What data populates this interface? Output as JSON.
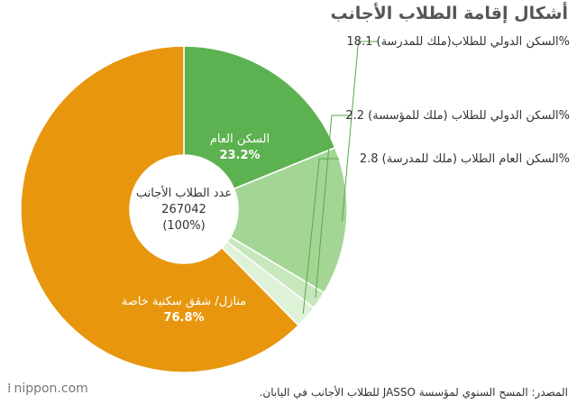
{
  "title": "أشكال إقامة الطلاب الأجانب",
  "source": "المصدر: المسح السنوي لمؤسسة JASSO للطلاب الأجانب في اليابان.",
  "logo": "nippon.com",
  "chart_data": {
    "type": "pie",
    "donut": true,
    "center_label": [
      "عدد الطلاب الأجانب",
      "267042",
      "(100%)"
    ],
    "slices": [
      {
        "label": "السكن العام",
        "value": 23.2,
        "color": "#5cb150",
        "label_inside": true
      },
      {
        "label": "السكن الدولي للطلاب(ملك للمدرسة)",
        "value": 18.1,
        "color": "#a3d695",
        "label_inside": false
      },
      {
        "label": "السكن الدولي للطلاب (ملك للمؤسسة)",
        "value": 2.2,
        "color": "#c6e8bc",
        "label_inside": false
      },
      {
        "label": "السكن العام الطلاب (ملك للمدرسة)",
        "value": 2.8,
        "color": "#def2d8",
        "label_inside": false
      },
      {
        "label": "منازل/ شقق سكنية خاصة",
        "value": 76.8,
        "color": "#e7960e",
        "label_inside": true
      }
    ]
  }
}
